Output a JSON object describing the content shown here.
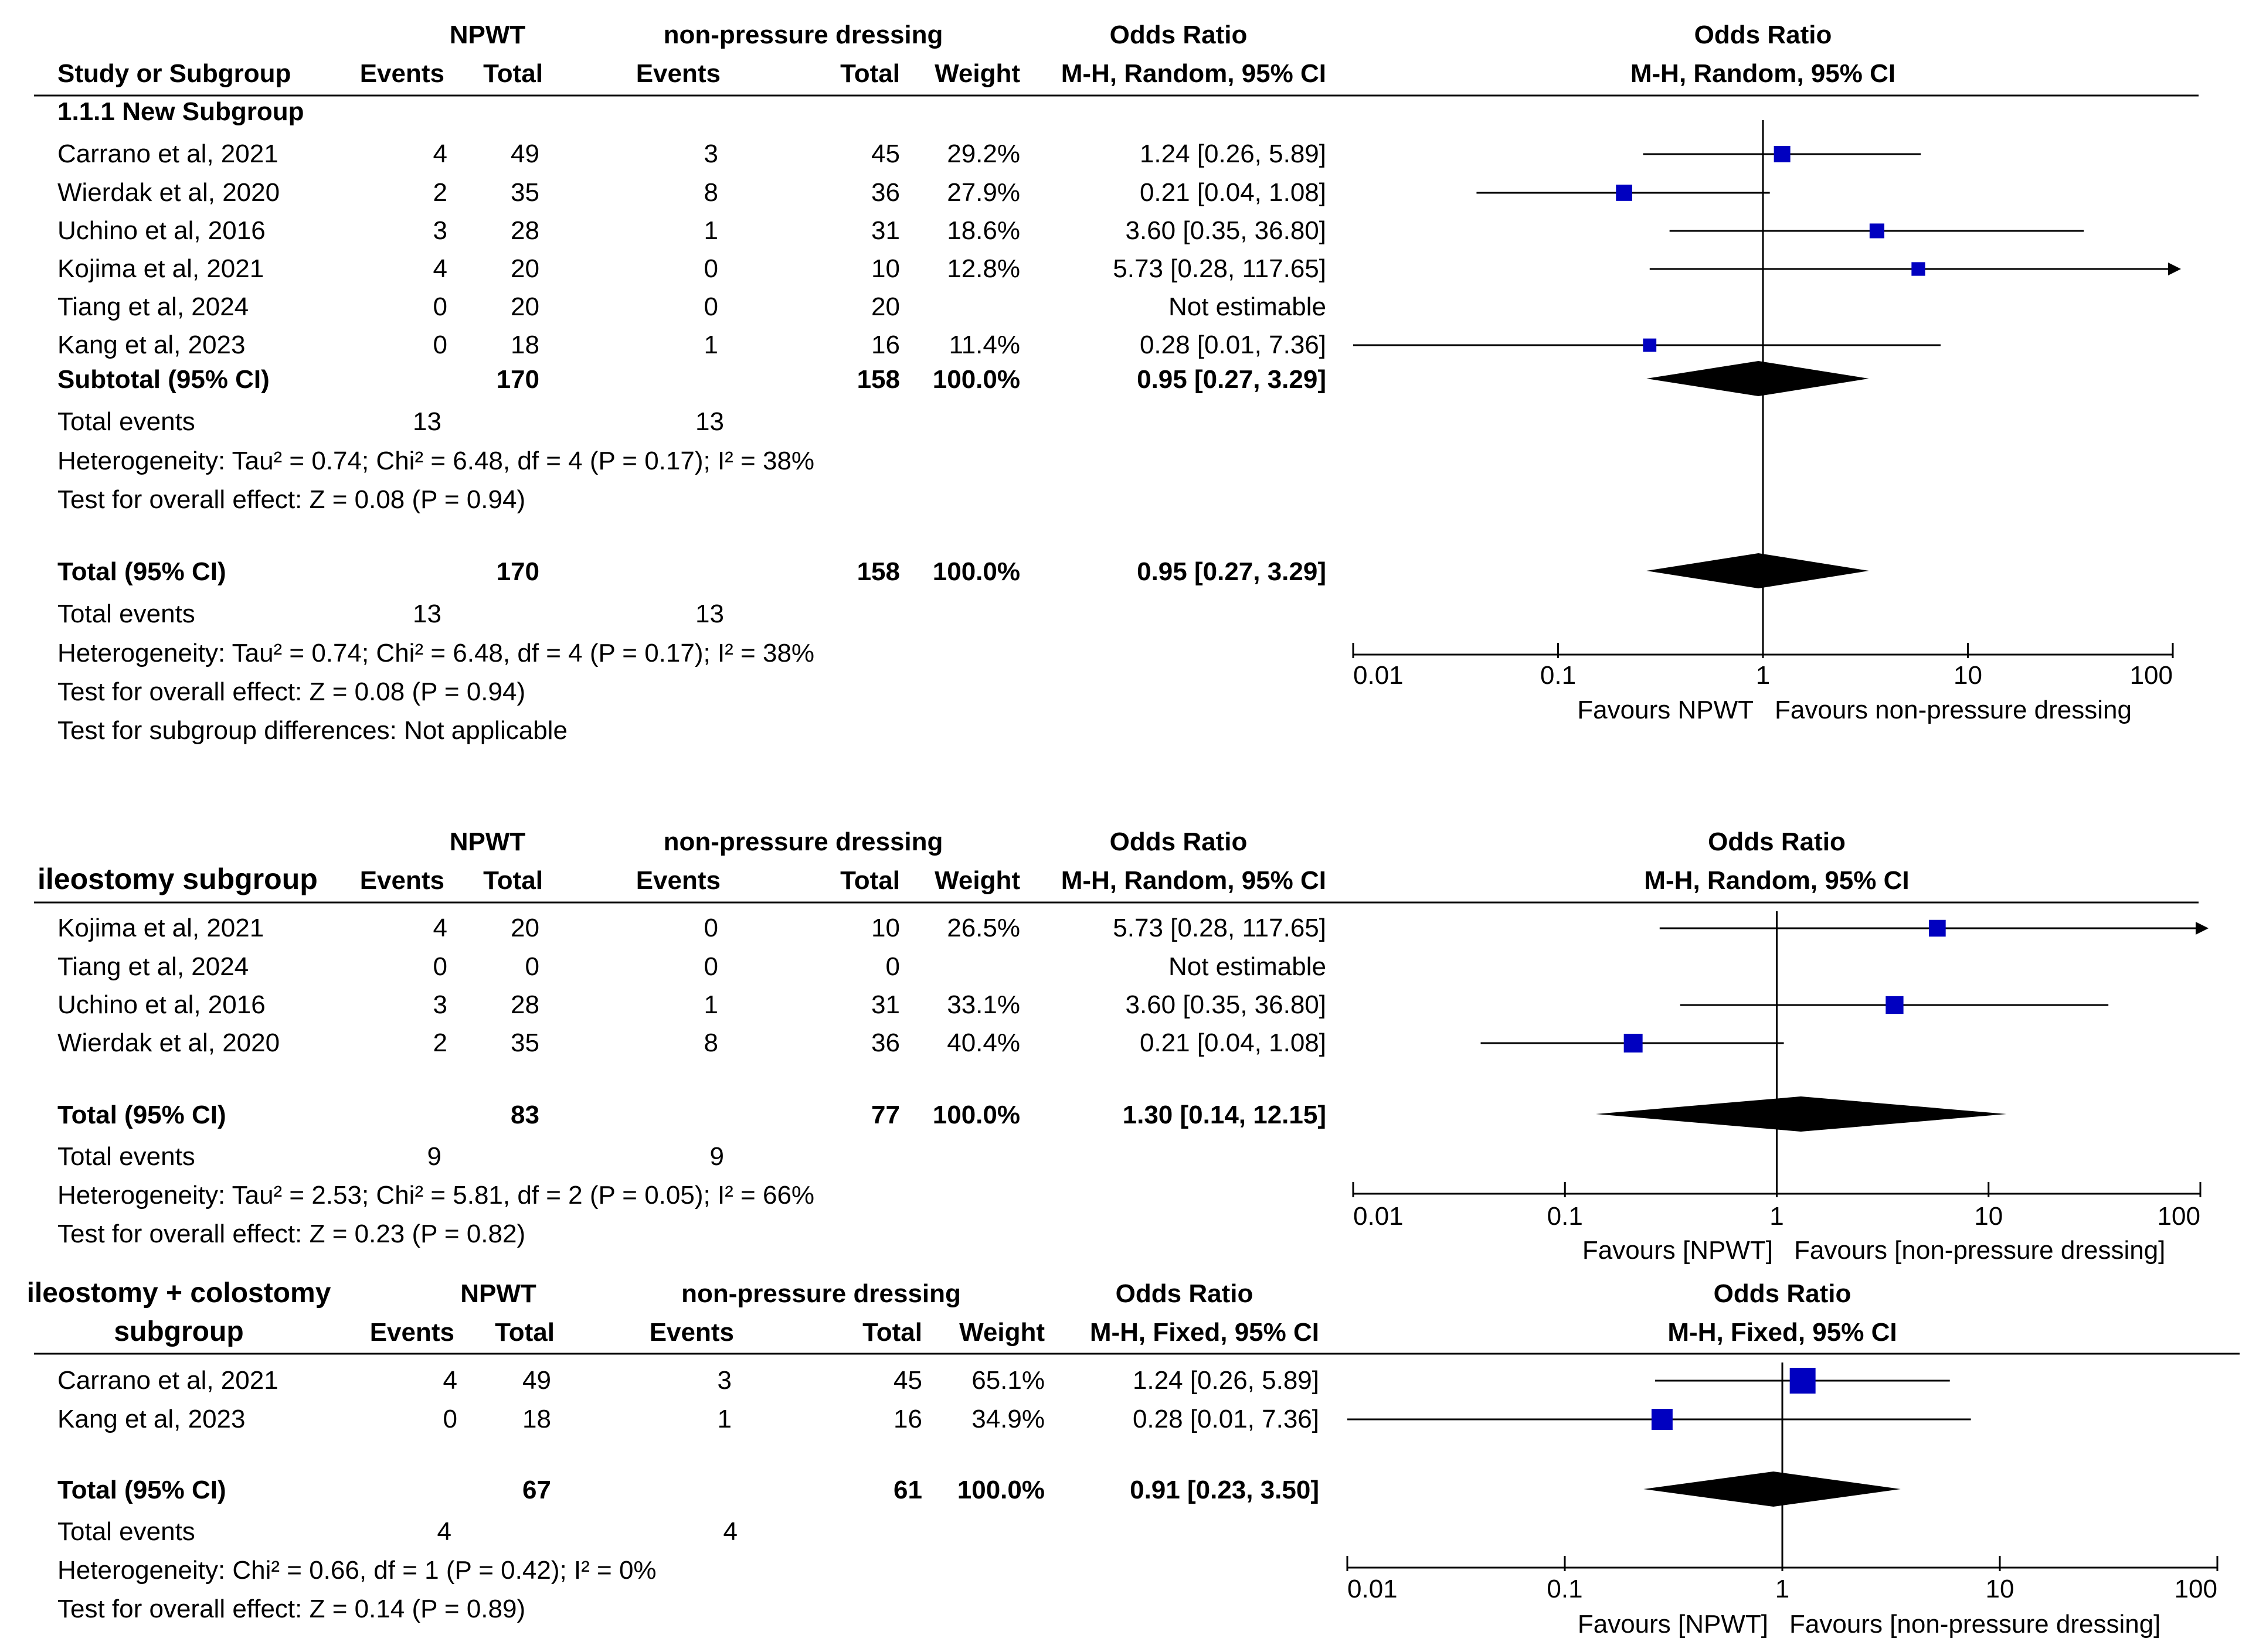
{
  "colors": {
    "ink": "#000000",
    "square": "#0000c0"
  },
  "chart_data": [
    {
      "type": "forest",
      "id": "main",
      "head": {
        "group1": "NPWT",
        "group2": "non-pressure dressing",
        "or_title": "Odds Ratio",
        "or_method": "M-H, Random, 95% CI",
        "study": "Study or Subgroup",
        "events": "Events",
        "total": "Total",
        "weight": "Weight"
      },
      "subgroup_title": "1.1.1 New Subgroup",
      "studies": [
        {
          "label": "Carrano et al, 2021",
          "e1": "4",
          "t1": "49",
          "e2": "3",
          "t2": "45",
          "weight": "29.2%",
          "or_text": "1.24 [0.26, 5.89]",
          "or": 1.24,
          "lo": 0.26,
          "hi": 5.89,
          "w": 29.2
        },
        {
          "label": "Wierdak et al, 2020",
          "e1": "2",
          "t1": "35",
          "e2": "8",
          "t2": "36",
          "weight": "27.9%",
          "or_text": "0.21 [0.04, 1.08]",
          "or": 0.21,
          "lo": 0.04,
          "hi": 1.08,
          "w": 27.9
        },
        {
          "label": "Uchino et al, 2016",
          "e1": "3",
          "t1": "28",
          "e2": "1",
          "t2": "31",
          "weight": "18.6%",
          "or_text": "3.60 [0.35, 36.80]",
          "or": 3.6,
          "lo": 0.35,
          "hi": 36.8,
          "w": 18.6
        },
        {
          "label": "Kojima et al, 2021",
          "e1": "4",
          "t1": "20",
          "e2": "0",
          "t2": "10",
          "weight": "12.8%",
          "or_text": "5.73 [0.28, 117.65]",
          "or": 5.73,
          "lo": 0.28,
          "hi": 117.65,
          "w": 12.8
        },
        {
          "label": "Tiang et al, 2024",
          "e1": "0",
          "t1": "20",
          "e2": "0",
          "t2": "20",
          "weight": "",
          "or_text": "Not estimable",
          "or": null,
          "lo": null,
          "hi": null,
          "w": 0
        },
        {
          "label": "Kang et al, 2023",
          "e1": "0",
          "t1": "18",
          "e2": "1",
          "t2": "16",
          "weight": "11.4%",
          "or_text": "0.28 [0.01, 7.36]",
          "or": 0.28,
          "lo": 0.01,
          "hi": 7.36,
          "w": 11.4
        }
      ],
      "subtotal": {
        "label": "Subtotal (95% CI)",
        "t1": "170",
        "t2": "158",
        "weight": "100.0%",
        "or_text": "0.95 [0.27, 3.29]",
        "or": 0.95,
        "lo": 0.27,
        "hi": 3.29
      },
      "sub_events": {
        "label": "Total events",
        "e1": "13",
        "e2": "13"
      },
      "sub_notes": [
        "Heterogeneity: Tau² = 0.74; Chi² = 6.48, df = 4 (P = 0.17); I² = 38%",
        "Test for overall effect: Z = 0.08 (P = 0.94)"
      ],
      "total": {
        "label": "Total (95% CI)",
        "t1": "170",
        "t2": "158",
        "weight": "100.0%",
        "or_text": "0.95 [0.27, 3.29]",
        "or": 0.95,
        "lo": 0.27,
        "hi": 3.29
      },
      "total_events": {
        "label": "Total events",
        "e1": "13",
        "e2": "13"
      },
      "notes": [
        "Heterogeneity: Tau² = 0.74; Chi² = 6.48, df = 4 (P = 0.17); I² = 38%",
        "Test for overall effect: Z = 0.08 (P = 0.94)",
        "Test for subgroup differences: Not applicable"
      ],
      "axis": {
        "scale": "log",
        "xlim": [
          0.01,
          100
        ],
        "ticks": [
          0.01,
          0.1,
          1,
          10,
          100
        ],
        "tick_labels": [
          "0.01",
          "0.1",
          "1",
          "10",
          "100"
        ],
        "favours_left": "Favours NPWT",
        "favours_right": "Favours non-pressure dressing"
      }
    },
    {
      "type": "forest",
      "id": "ileostomy",
      "head": {
        "group1": "NPWT",
        "group2": "non-pressure dressing",
        "or_title": "Odds Ratio",
        "or_method": "M-H, Random, 95% CI",
        "study": "ileostomy subgroup",
        "events": "Events",
        "total": "Total",
        "weight": "Weight"
      },
      "studies": [
        {
          "label": "Kojima et al, 2021",
          "e1": "4",
          "t1": "20",
          "e2": "0",
          "t2": "10",
          "weight": "26.5%",
          "or_text": "5.73 [0.28, 117.65]",
          "or": 5.73,
          "lo": 0.28,
          "hi": 117.65,
          "w": 26.5
        },
        {
          "label": "Tiang et al, 2024",
          "e1": "0",
          "t1": "0",
          "e2": "0",
          "t2": "0",
          "weight": "",
          "or_text": "Not estimable",
          "or": null,
          "lo": null,
          "hi": null,
          "w": 0
        },
        {
          "label": "Uchino et al, 2016",
          "e1": "3",
          "t1": "28",
          "e2": "1",
          "t2": "31",
          "weight": "33.1%",
          "or_text": "3.60 [0.35, 36.80]",
          "or": 3.6,
          "lo": 0.35,
          "hi": 36.8,
          "w": 33.1
        },
        {
          "label": "Wierdak et al, 2020",
          "e1": "2",
          "t1": "35",
          "e2": "8",
          "t2": "36",
          "weight": "40.4%",
          "or_text": "0.21 [0.04, 1.08]",
          "or": 0.21,
          "lo": 0.04,
          "hi": 1.08,
          "w": 40.4
        }
      ],
      "total": {
        "label": "Total (95% CI)",
        "t1": "83",
        "t2": "77",
        "weight": "100.0%",
        "or_text": "1.30 [0.14, 12.15]",
        "or": 1.3,
        "lo": 0.14,
        "hi": 12.15
      },
      "total_events": {
        "label": "Total events",
        "e1": "9",
        "e2": "9"
      },
      "notes": [
        "Heterogeneity: Tau² = 2.53; Chi² = 5.81, df = 2 (P = 0.05); I² = 66%",
        "Test for overall effect: Z = 0.23 (P = 0.82)"
      ],
      "axis": {
        "scale": "log",
        "xlim": [
          0.01,
          100
        ],
        "ticks": [
          0.01,
          0.1,
          1,
          10,
          100
        ],
        "tick_labels": [
          "0.01",
          "0.1",
          "1",
          "10",
          "100"
        ],
        "favours_left": "Favours [NPWT]",
        "favours_right": "Favours [non-pressure dressing]"
      }
    },
    {
      "type": "forest",
      "id": "ileo-colo",
      "head": {
        "group1": "NPWT",
        "group2": "non-pressure dressing",
        "or_title": "Odds Ratio",
        "or_method": "M-H, Fixed, 95% CI",
        "study_line1": "ileostomy + colostomy",
        "study_line2": "subgroup",
        "events": "Events",
        "total": "Total",
        "weight": "Weight"
      },
      "studies": [
        {
          "label": "Carrano et al, 2021",
          "e1": "4",
          "t1": "49",
          "e2": "3",
          "t2": "45",
          "weight": "65.1%",
          "or_text": "1.24 [0.26, 5.89]",
          "or": 1.24,
          "lo": 0.26,
          "hi": 5.89,
          "w": 65.1
        },
        {
          "label": "Kang et al, 2023",
          "e1": "0",
          "t1": "18",
          "e2": "1",
          "t2": "16",
          "weight": "34.9%",
          "or_text": "0.28 [0.01, 7.36]",
          "or": 0.28,
          "lo": 0.01,
          "hi": 7.36,
          "w": 34.9
        }
      ],
      "total": {
        "label": "Total (95% CI)",
        "t1": "67",
        "t2": "61",
        "weight": "100.0%",
        "or_text": "0.91 [0.23, 3.50]",
        "or": 0.91,
        "lo": 0.23,
        "hi": 3.5
      },
      "total_events": {
        "label": "Total events",
        "e1": "4",
        "e2": "4"
      },
      "notes": [
        "Heterogeneity: Chi² = 0.66, df = 1 (P = 0.42); I² = 0%",
        "Test for overall effect: Z = 0.14 (P = 0.89)"
      ],
      "axis": {
        "scale": "log",
        "xlim": [
          0.01,
          100
        ],
        "ticks": [
          0.01,
          0.1,
          1,
          10,
          100
        ],
        "tick_labels": [
          "0.01",
          "0.1",
          "1",
          "10",
          "100"
        ],
        "favours_left": "Favours [NPWT]",
        "favours_right": "Favours [non-pressure dressing]"
      }
    }
  ]
}
